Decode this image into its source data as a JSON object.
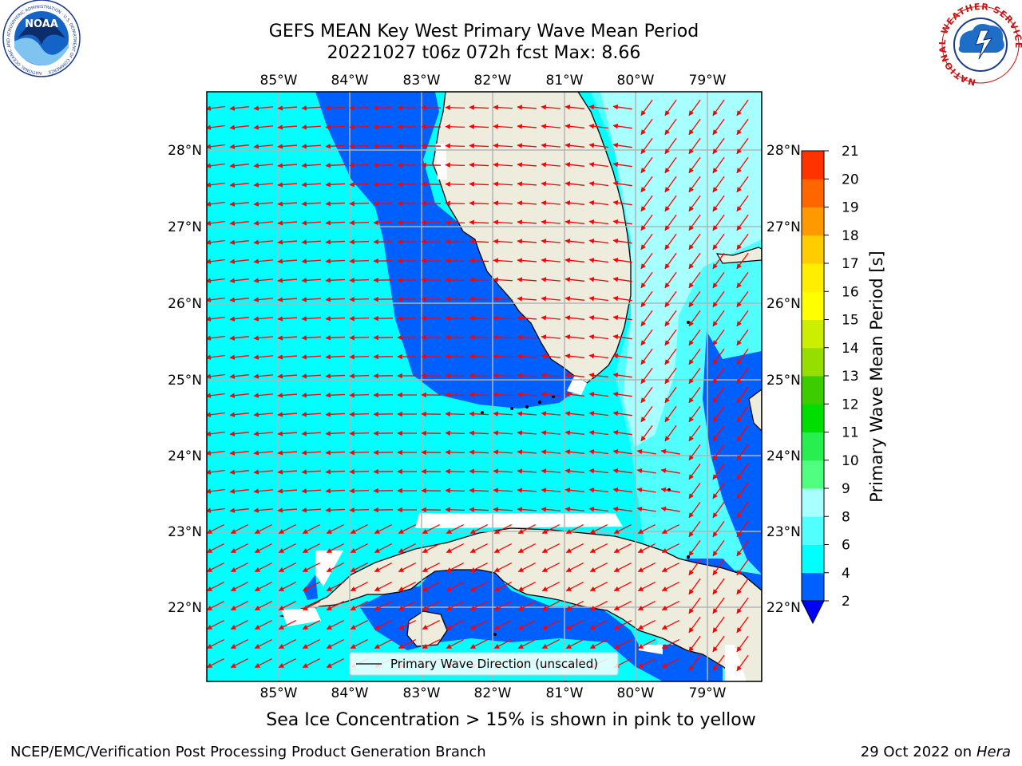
{
  "header": {
    "title_line1": "GEFS MEAN Key West Primary Wave Mean Period",
    "title_line2": "20221027 t06z 072h fcst   Max: 8.66"
  },
  "logos": {
    "left": {
      "name": "noaa-logo",
      "text": "NOAA",
      "ring_text": "NATIONAL OCEANIC AND ATMOSPHERIC ADMINISTRATION · U.S. DEPARTMENT OF COMMERCE"
    },
    "right": {
      "name": "nws-logo",
      "ring_text": "NATIONAL WEATHER SERVICE"
    }
  },
  "map": {
    "lon_labels": [
      "85°W",
      "84°W",
      "83°W",
      "82°W",
      "81°W",
      "80°W",
      "79°W"
    ],
    "lat_labels": [
      "28°N",
      "27°N",
      "26°N",
      "25°N",
      "24°N",
      "23°N",
      "22°N"
    ],
    "extent": {
      "lon_min": -86.0,
      "lon_max": -78.3,
      "lat_min": 21.0,
      "lat_max": 28.75
    },
    "grid": true,
    "land_color": "#eeecdc",
    "coast_color": "#000000",
    "arrow_color": "#ff0000",
    "arrow_direction": "toward west-southwest in Gulf, toward southwest on Atlantic side",
    "legend_label": "Primary Wave Direction (unscaled)",
    "legend_placement": "bottom-center"
  },
  "colorbar": {
    "label": "Primary Wave Mean Period [s]",
    "ticks": [
      "2",
      "4",
      "6",
      "8",
      "9",
      "10",
      "11",
      "12",
      "13",
      "14",
      "15",
      "16",
      "17",
      "18",
      "19",
      "20",
      "21"
    ],
    "colors": [
      "#0060ff",
      "#00ffff",
      "#52ffff",
      "#a8ffff",
      "#50ff80",
      "#28ee50",
      "#00dd00",
      "#3ccc00",
      "#96dd00",
      "#ccee00",
      "#ffff00",
      "#ffee00",
      "#ffcc00",
      "#ff9900",
      "#ff6600",
      "#ff3300",
      "#ff0000"
    ],
    "extend_color": "#0000ff"
  },
  "chart_data": {
    "type": "heatmap",
    "variable": "Primary Wave Mean Period",
    "units": "s",
    "max": 8.66,
    "levels": [
      2,
      4,
      6,
      8,
      9,
      10,
      11,
      12,
      13,
      14,
      15,
      16,
      17,
      18,
      19,
      20,
      21
    ],
    "regions": [
      {
        "area": "open Gulf of Mexico",
        "range": "4-6"
      },
      {
        "area": "west Florida shelf",
        "range": "2-4"
      },
      {
        "area": "Florida Straits",
        "range": "4-6"
      },
      {
        "area": "Atlantic east of Florida",
        "range": "6-8"
      },
      {
        "area": "Great Bahama Bank",
        "range": "2-4"
      }
    ]
  },
  "caption": "Sea Ice Concentration > 15% is shown in pink to yellow",
  "footer": {
    "left": "NCEP/EMC/Verification Post Processing Product Generation Branch",
    "right_prefix": "29 Oct 2022 on ",
    "right_host": "Hera"
  }
}
